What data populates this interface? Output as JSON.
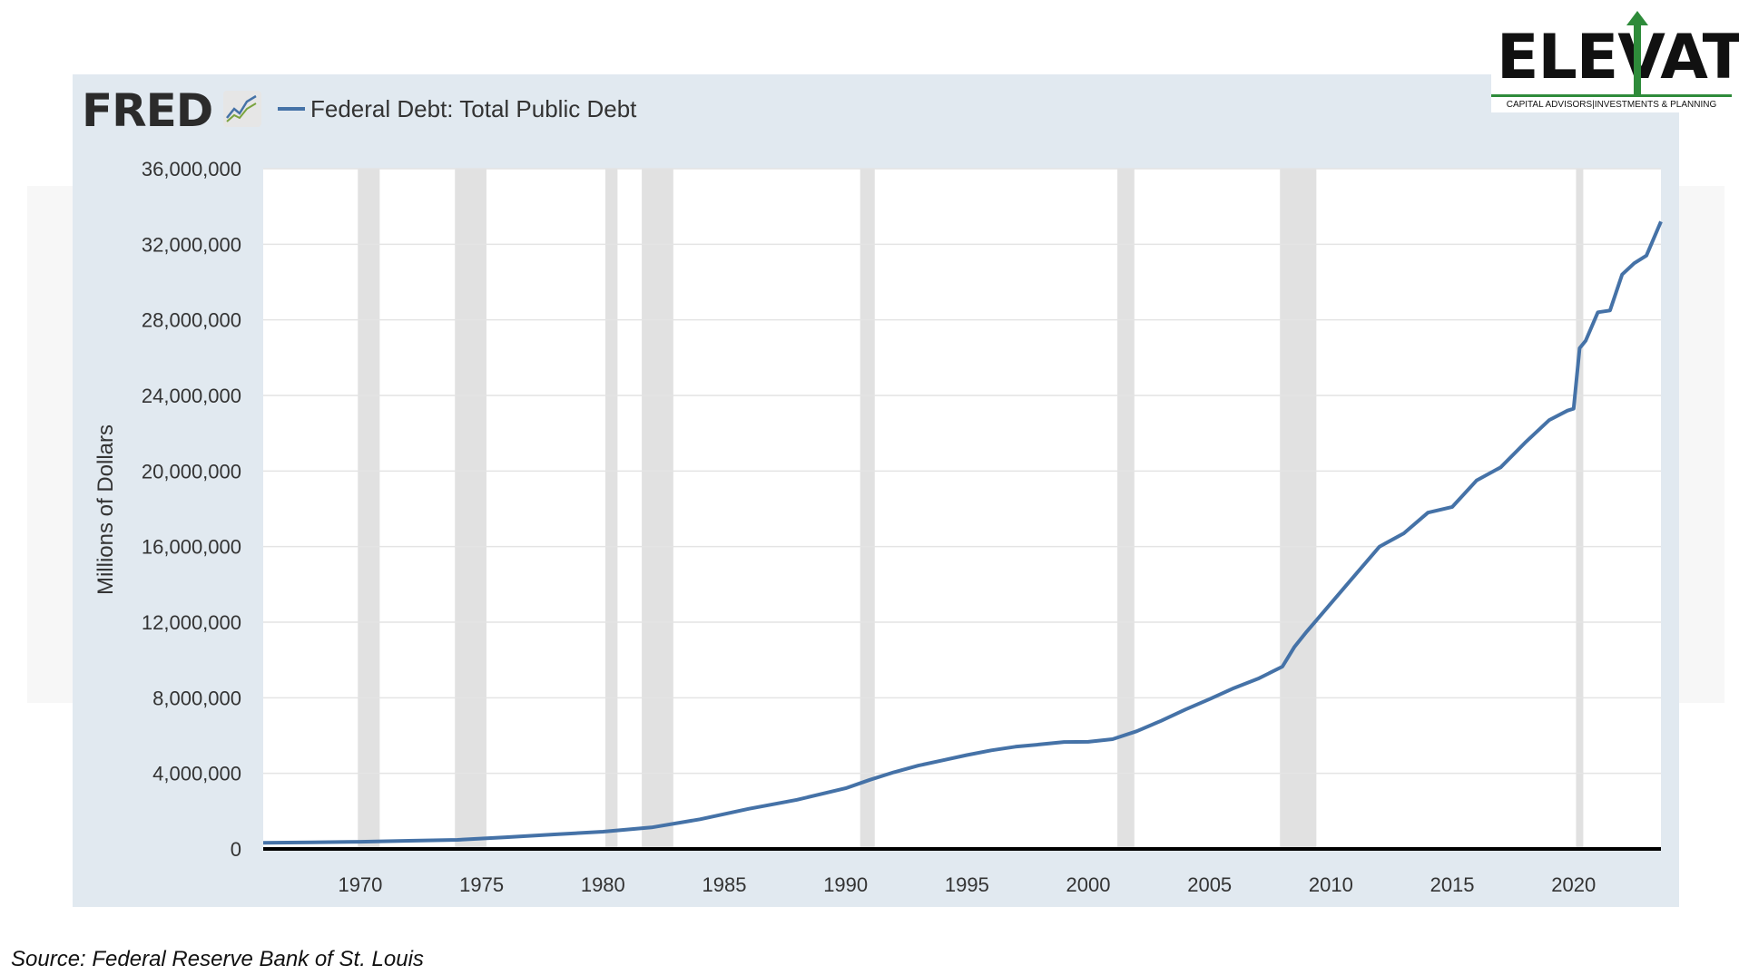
{
  "header": {
    "fred_logo": "FRED",
    "legend_label": "Federal Debt: Total Public Debt",
    "line_color": "#4572a7"
  },
  "brand": {
    "name": "ELEVATE",
    "tagline": "CAPITAL ADVISORS|INVESTMENTS & PLANNING",
    "accent": "#2e8b3a"
  },
  "source": "Source: Federal Reserve Bank of St. Louis",
  "chart_data": {
    "type": "line",
    "ylabel": "Millions of Dollars",
    "xlabel": "",
    "xlim": [
      1966.0,
      2023.6
    ],
    "ylim": [
      0,
      36000000
    ],
    "yticks": [
      0,
      4000000,
      8000000,
      12000000,
      16000000,
      20000000,
      24000000,
      28000000,
      32000000,
      36000000
    ],
    "ytick_labels": [
      "0",
      "4,000,000",
      "8,000,000",
      "12,000,000",
      "16,000,000",
      "20,000,000",
      "24,000,000",
      "28,000,000",
      "32,000,000",
      "36,000,000"
    ],
    "xticks": [
      1970,
      1975,
      1980,
      1985,
      1990,
      1995,
      2000,
      2005,
      2010,
      2015,
      2020
    ],
    "xtick_labels": [
      "1970",
      "1975",
      "1980",
      "1985",
      "1990",
      "1995",
      "2000",
      "2005",
      "2010",
      "2015",
      "2020"
    ],
    "grid": true,
    "recessions": [
      [
        1969.9,
        1970.8
      ],
      [
        1973.9,
        1975.2
      ],
      [
        1980.1,
        1980.6
      ],
      [
        1981.6,
        1982.9
      ],
      [
        1990.6,
        1991.2
      ],
      [
        2001.2,
        2001.9
      ],
      [
        2007.9,
        2009.4
      ],
      [
        2020.1,
        2020.4
      ]
    ],
    "series": [
      {
        "name": "Federal Debt: Total Public Debt",
        "color": "#4572a7",
        "x": [
          1966.0,
          1968,
          1970,
          1972,
          1974,
          1976,
          1978,
          1980,
          1982,
          1984,
          1986,
          1988,
          1990,
          1991,
          1992,
          1993,
          1994,
          1995,
          1996,
          1997,
          1998,
          1999,
          2000,
          2001,
          2002,
          2003,
          2004,
          2005,
          2006,
          2007,
          2008,
          2008.5,
          2009,
          2010,
          2011,
          2012,
          2013,
          2014,
          2015,
          2016,
          2017,
          2018,
          2019,
          2019.75,
          2020.0,
          2020.25,
          2020.5,
          2021,
          2021.5,
          2022,
          2022.5,
          2023,
          2023.6
        ],
        "values": [
          320000,
          350000,
          380000,
          430000,
          480000,
          620000,
          770000,
          910000,
          1140000,
          1570000,
          2120000,
          2600000,
          3210000,
          3660000,
          4060000,
          4410000,
          4690000,
          4970000,
          5220000,
          5410000,
          5530000,
          5660000,
          5670000,
          5810000,
          6230000,
          6780000,
          7380000,
          7930000,
          8510000,
          9010000,
          9650000,
          10700000,
          11500000,
          13000000,
          14500000,
          16000000,
          16700000,
          17800000,
          18100000,
          19500000,
          20200000,
          21500000,
          22700000,
          23200000,
          23300000,
          26500000,
          26900000,
          28400000,
          28500000,
          30400000,
          31000000,
          31400000,
          33200000
        ]
      }
    ]
  }
}
